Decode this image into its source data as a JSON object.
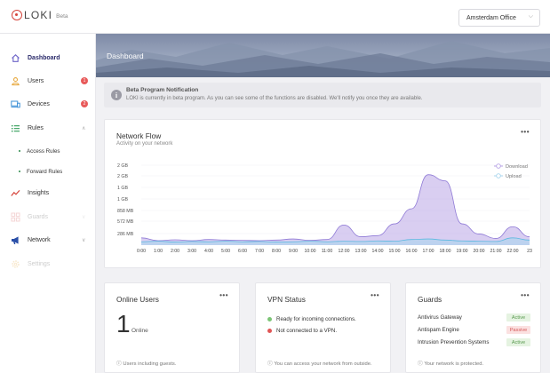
{
  "header": {
    "logo_text": "LOKI",
    "logo_badge": "Beta",
    "office_select": "Amsterdam Office"
  },
  "sidebar": {
    "items": [
      {
        "label": "Dashboard",
        "icon": "home-icon"
      },
      {
        "label": "Users",
        "icon": "user-icon",
        "badge": "1"
      },
      {
        "label": "Devices",
        "icon": "devices-icon",
        "badge": "2"
      },
      {
        "label": "Rules",
        "icon": "list-icon"
      },
      {
        "label": "Insights",
        "icon": "trend-icon"
      },
      {
        "label": "Guards",
        "icon": "grid-icon"
      },
      {
        "label": "Network",
        "icon": "megaphone-icon"
      },
      {
        "label": "Settings",
        "icon": "gear-icon"
      }
    ],
    "rules_sub": [
      "Access Rules",
      "Forward Rules"
    ]
  },
  "hero": {
    "title": "Dashboard"
  },
  "notification": {
    "title": "Beta Program Notification",
    "body": "LOKI is currently in beta program. As you can see some of the functions are disabled. We'll notify you once they are available."
  },
  "network_flow": {
    "title": "Network Flow",
    "subtitle": "Activity on your network",
    "menu": "•••"
  },
  "chart_data": {
    "type": "area",
    "x": [
      "0:00",
      "1:00",
      "2:00",
      "3:00",
      "4:00",
      "5:00",
      "6:00",
      "7:00",
      "8:00",
      "9:00",
      "10:00",
      "11:00",
      "12:00",
      "13:00",
      "14:00",
      "15:00",
      "16:00",
      "17:00",
      "18:00",
      "19:00",
      "20:00",
      "21:00",
      "22:00",
      "23"
    ],
    "y_ticks": [
      "2 GB",
      "2 GB",
      "1 GB",
      "1 GB",
      "858 MB",
      "572 MB",
      "286 MB"
    ],
    "series": [
      {
        "name": "Download",
        "color": "#b9a5e6",
        "values": [
          130,
          80,
          95,
          80,
          100,
          90,
          85,
          80,
          90,
          110,
          85,
          100,
          360,
          150,
          170,
          380,
          650,
          1260,
          1150,
          380,
          200,
          120,
          330,
          150
        ]
      },
      {
        "name": "Upload",
        "color": "#a9d6ee",
        "values": [
          60,
          70,
          55,
          65,
          60,
          70,
          60,
          65,
          55,
          60,
          70,
          60,
          70,
          65,
          75,
          70,
          100,
          110,
          90,
          75,
          70,
          65,
          130,
          90
        ]
      }
    ]
  },
  "online_users": {
    "title": "Online Users",
    "menu": "•••",
    "count": "1",
    "count_label": "Online",
    "footer": "Users including guests."
  },
  "vpn_status": {
    "title": "VPN Status",
    "menu": "•••",
    "rows": [
      {
        "text": "Ready for incoming connections.",
        "color": "#7cc576"
      },
      {
        "text": "Not connected to a VPN.",
        "color": "#e05656"
      }
    ],
    "footer": "You can access your network from outside."
  },
  "guards": {
    "title": "Guards",
    "menu": "•••",
    "rows": [
      {
        "name": "Antivirus Gateway",
        "status": "Active",
        "bg": "#e5f3e1",
        "fg": "#5a9a50"
      },
      {
        "name": "Antispam Engine",
        "status": "Passive",
        "bg": "#fbe1e1",
        "fg": "#d65a5a"
      },
      {
        "name": "Intrusion Prevention Systems",
        "status": "Active",
        "bg": "#e5f3e1",
        "fg": "#5a9a50"
      }
    ],
    "footer": "Your network is protected."
  }
}
